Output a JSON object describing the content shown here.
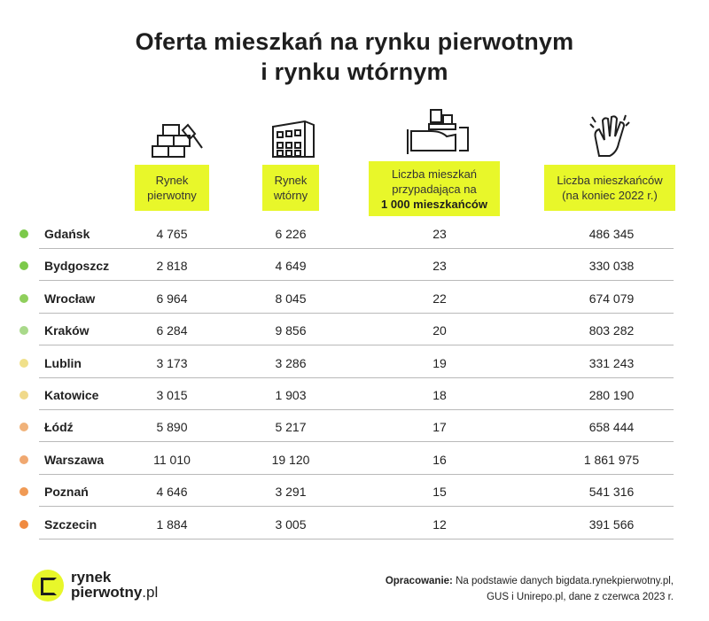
{
  "title": {
    "line1": "Oferta mieszkań na rynku pierwotnym",
    "line2": "i rynku wtórnym"
  },
  "headers": {
    "primary": {
      "line1": "Rynek",
      "line2": "pierwotny",
      "icon": "bricks-trowel-icon"
    },
    "secondary": {
      "line1": "Rynek",
      "line2": "wtórny",
      "icon": "apartment-building-icon"
    },
    "per_1000": {
      "line1": "Liczba mieszkań",
      "line2": "przypadająca na",
      "line3": "1 000 mieszkańców",
      "icon": "hand-holding-buildings-icon"
    },
    "population": {
      "line1": "Liczba mieszkańców",
      "line2": "(na koniec 2022 r.)",
      "icon": "waving-hand-icon"
    }
  },
  "colors": {
    "accent": "#e8f72a"
  },
  "chart_data": {
    "type": "table",
    "columns": [
      "",
      "Rynek pierwotny",
      "Rynek wtórny",
      "Liczba mieszkań przypadająca na 1 000 mieszkańców",
      "Liczba mieszkańców (na koniec 2022 r.)"
    ],
    "rows": [
      {
        "city": "Gdańsk",
        "primary": "4 765",
        "secondary": "6 226",
        "per_1000": "23",
        "population": "486 345",
        "dot": "#7cc94a"
      },
      {
        "city": "Bydgoszcz",
        "primary": "2 818",
        "secondary": "4 649",
        "per_1000": "23",
        "population": "330 038",
        "dot": "#7cc94a"
      },
      {
        "city": "Wrocław",
        "primary": "6 964",
        "secondary": "8 045",
        "per_1000": "22",
        "population": "674 079",
        "dot": "#8fcf5c"
      },
      {
        "city": "Kraków",
        "primary": "6 284",
        "secondary": "9 856",
        "per_1000": "20",
        "population": "803 282",
        "dot": "#a9d98a"
      },
      {
        "city": "Lublin",
        "primary": "3 173",
        "secondary": "3 286",
        "per_1000": "19",
        "population": "331 243",
        "dot": "#f0e08a"
      },
      {
        "city": "Katowice",
        "primary": "3 015",
        "secondary": "1 903",
        "per_1000": "18",
        "population": "280 190",
        "dot": "#f0d98a"
      },
      {
        "city": "Łódź",
        "primary": "5 890",
        "secondary": "5 217",
        "per_1000": "17",
        "population": "658 444",
        "dot": "#f0b27a"
      },
      {
        "city": "Warszawa",
        "primary": "11 010",
        "secondary": "19 120",
        "per_1000": "16",
        "population": "1 861 975",
        "dot": "#f0a870"
      },
      {
        "city": "Poznań",
        "primary": "4 646",
        "secondary": "3 291",
        "per_1000": "15",
        "population": "541 316",
        "dot": "#f09a55"
      },
      {
        "city": "Szczecin",
        "primary": "1 884",
        "secondary": "3 005",
        "per_1000": "12",
        "population": "391 566",
        "dot": "#f08a40"
      }
    ]
  },
  "logo": {
    "line1": "rynek",
    "line2": "pierwotny",
    "suffix": ".pl"
  },
  "source": {
    "label": "Opracowanie:",
    "text1": " Na podstawie danych bigdata.rynekpierwotny.pl,",
    "text2": "GUS i Unirepo.pl, dane z czerwca 2023 r."
  }
}
